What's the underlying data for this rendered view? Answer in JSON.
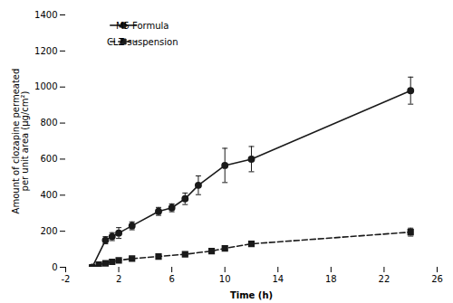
{
  "chart_data": {
    "type": "line",
    "xlabel": "Time (h)",
    "ylabel": "Amount of clozapine permeated\nper unit area (μg/cm²)",
    "xlim": [
      -2,
      26
    ],
    "ylim": [
      0,
      1400
    ],
    "xticks": [
      -2,
      2,
      6,
      10,
      14,
      18,
      22,
      26
    ],
    "yticks": [
      0,
      200,
      400,
      600,
      800,
      1000,
      1200,
      1400
    ],
    "legend": "upper left",
    "series": [
      {
        "name": "M5 Formula",
        "color": "#1a1a1a",
        "marker": "circle",
        "line_style": "solid",
        "x": [
          0,
          1,
          1.5,
          2,
          3,
          5,
          6,
          7,
          8,
          10,
          12,
          24
        ],
        "values": [
          0,
          150,
          170,
          190,
          230,
          310,
          330,
          380,
          455,
          565,
          600,
          980
        ],
        "errors": [
          0,
          20,
          22,
          30,
          22,
          22,
          22,
          32,
          52,
          95,
          70,
          75
        ]
      },
      {
        "name": "CLZ suspension",
        "color": "#1a1a1a",
        "marker": "square",
        "line_style": "dashed",
        "x": [
          0,
          0.5,
          1,
          1.5,
          2,
          3,
          5,
          7,
          9,
          10,
          12,
          24
        ],
        "values": [
          0,
          15,
          22,
          30,
          38,
          48,
          60,
          72,
          90,
          105,
          130,
          195
        ],
        "errors": [
          0,
          4,
          5,
          6,
          7,
          7,
          7,
          8,
          10,
          11,
          13,
          22
        ]
      }
    ]
  }
}
